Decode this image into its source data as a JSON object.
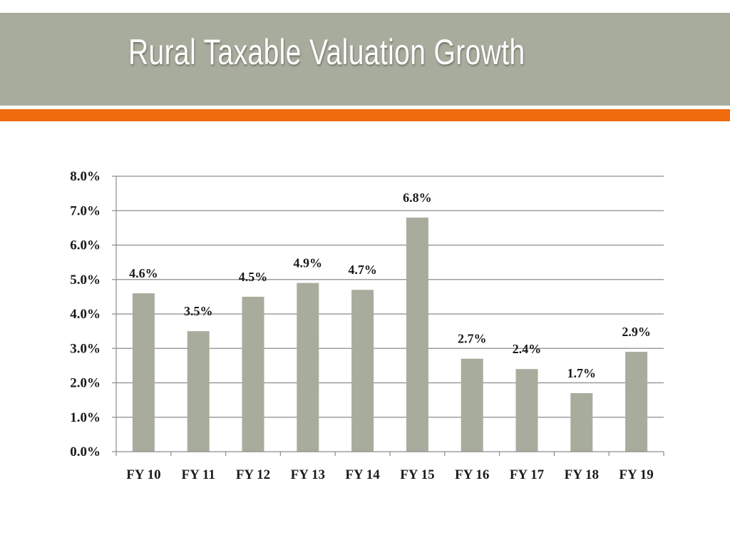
{
  "slide": {
    "title": "Rural Taxable Valuation Growth",
    "colors": {
      "title_band": "#a8ac9c",
      "accent": "#f06a0e",
      "bar": "#a8ac9c"
    }
  },
  "chart_data": {
    "type": "bar",
    "title": "",
    "xlabel": "",
    "ylabel": "",
    "categories": [
      "FY 10",
      "FY 11",
      "FY 12",
      "FY 13",
      "FY 14",
      "FY 15",
      "FY 16",
      "FY 17",
      "FY 18",
      "FY 19"
    ],
    "values": [
      4.6,
      3.5,
      4.5,
      4.9,
      4.7,
      6.8,
      2.7,
      2.4,
      1.7,
      2.9
    ],
    "data_labels": [
      "4.6%",
      "3.5%",
      "4.5%",
      "4.9%",
      "4.7%",
      "6.8%",
      "2.7%",
      "2.4%",
      "1.7%",
      "2.9%"
    ],
    "ylim": [
      0,
      8
    ],
    "yticks": [
      0,
      1,
      2,
      3,
      4,
      5,
      6,
      7,
      8
    ],
    "ytick_labels": [
      "0.0%",
      "1.0%",
      "2.0%",
      "3.0%",
      "4.0%",
      "5.0%",
      "6.0%",
      "7.0%",
      "8.0%"
    ],
    "grid": true,
    "legend": "none"
  }
}
